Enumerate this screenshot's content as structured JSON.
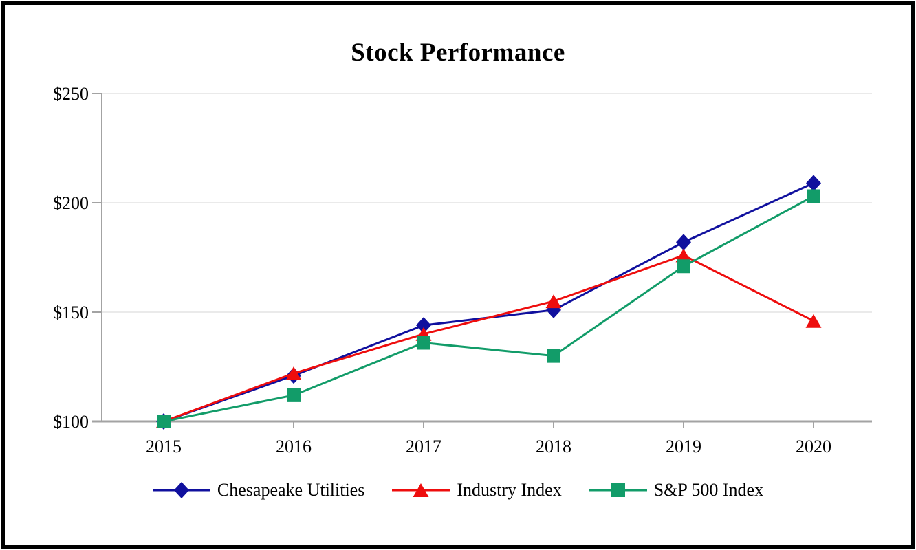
{
  "chart_data": {
    "type": "line",
    "title": "Stock Performance",
    "categories": [
      "2015",
      "2016",
      "2017",
      "2018",
      "2019",
      "2020"
    ],
    "series": [
      {
        "name": "Chesapeake Utilities",
        "marker": "diamond",
        "color": "#10109e",
        "values": [
          100,
          121,
          144,
          151,
          182,
          209
        ]
      },
      {
        "name": "Industry Index",
        "marker": "triangle",
        "color": "#ee0d0d",
        "values": [
          100,
          122,
          140,
          155,
          176,
          146
        ]
      },
      {
        "name": "S&P 500 Index",
        "marker": "square",
        "color": "#129c69",
        "values": [
          100,
          112,
          136,
          130,
          171,
          203
        ]
      }
    ],
    "y_ticks": [
      {
        "value": 100,
        "label": "$100"
      },
      {
        "value": 150,
        "label": "$150"
      },
      {
        "value": 200,
        "label": "$200"
      },
      {
        "value": 250,
        "label": "$250"
      }
    ],
    "ylim": [
      100,
      250
    ],
    "grid": "horizontal",
    "legend_position": "bottom",
    "colors": {
      "axis": "#a3a3a3",
      "gridline": "#e3e3e3",
      "text": "#000000",
      "frame_border": "#000000",
      "background": "#ffffff"
    }
  }
}
